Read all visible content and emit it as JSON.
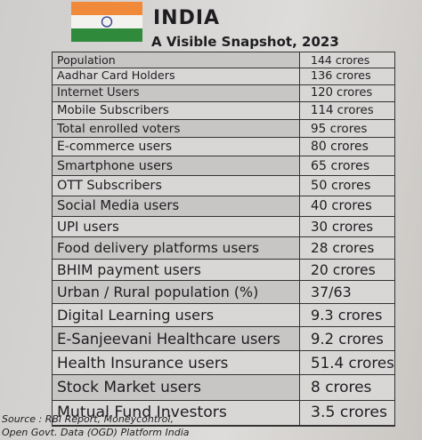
{
  "header": {
    "title": "INDIA",
    "subtitle": "A Visible Snapshot, 2023"
  },
  "table": {
    "rows": [
      [
        "Population",
        "144 crores"
      ],
      [
        "Aadhar Card Holders",
        "136 crores"
      ],
      [
        "Internet Users",
        "120 crores"
      ],
      [
        "Mobile Subscribers",
        "114 crores"
      ],
      [
        "Total enrolled voters",
        "95 crores"
      ],
      [
        "E-commerce users",
        "80 crores"
      ],
      [
        "Smartphone users",
        "65 crores"
      ],
      [
        "OTT Subscribers",
        "50 crores"
      ],
      [
        "Social Media users",
        "40 crores"
      ],
      [
        "UPI users",
        "30 crores"
      ],
      [
        "Food delivery platforms users",
        "28 crores"
      ],
      [
        "BHIM payment users",
        "20 crores"
      ],
      [
        "Urban / Rural population (%)",
        "37/63"
      ],
      [
        "Digital Learning users",
        "9.3 crores"
      ],
      [
        "E-Sanjeevani Healthcare users",
        "9.2 crores"
      ],
      [
        "Health Insurance users",
        "51.4 crores"
      ],
      [
        "Stock Market users",
        "8 crores"
      ],
      [
        "Mutual Fund Investors",
        "3.5 crores"
      ]
    ]
  },
  "source": [
    "Source : RBI Report, Moneycontrol,",
    "Open Govt. Data (OGD) Platform India"
  ]
}
